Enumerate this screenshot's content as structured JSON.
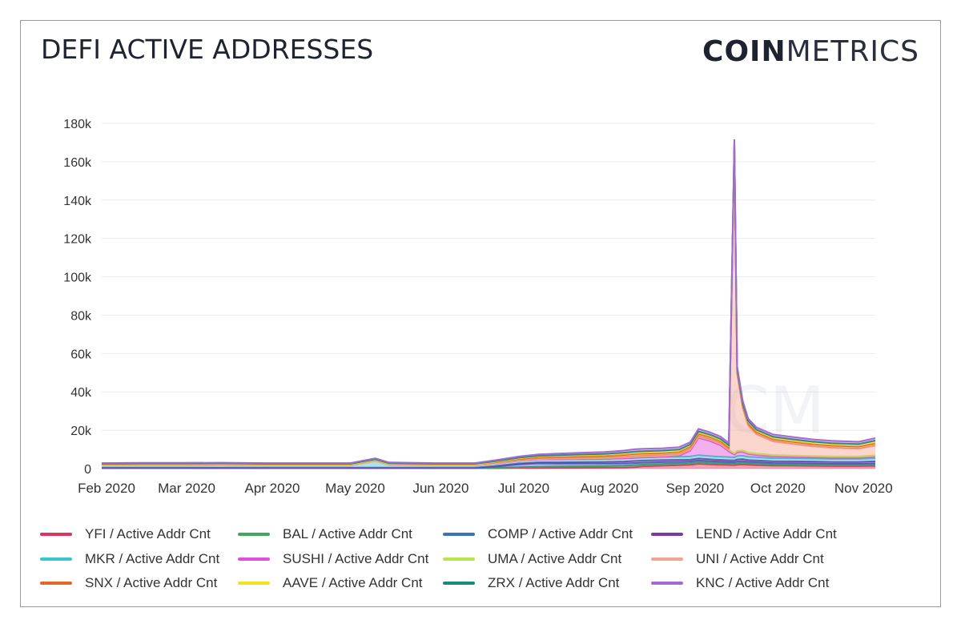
{
  "header": {
    "title": "DEFI ACTIVE ADDRESSES",
    "logo_bold": "COIN",
    "logo_thin": "METRICS"
  },
  "chart_data": {
    "type": "area",
    "stacked": true,
    "title": "DEFI ACTIVE ADDRESSES",
    "xlabel": "",
    "ylabel": "",
    "ylim": [
      0,
      190000
    ],
    "yticks": [
      0,
      20000,
      40000,
      60000,
      80000,
      100000,
      120000,
      140000,
      160000,
      180000
    ],
    "ytick_labels": [
      "0",
      "20k",
      "40k",
      "60k",
      "80k",
      "100k",
      "120k",
      "140k",
      "160k",
      "180k"
    ],
    "xticks": [
      "Feb 2020",
      "Mar 2020",
      "Apr 2020",
      "May 2020",
      "Jun 2020",
      "Jul 2020",
      "Aug 2020",
      "Sep 2020",
      "Oct 2020",
      "Nov 2020"
    ],
    "grid": true,
    "legend_position": "bottom",
    "x": [
      "2020-02-01",
      "2020-02-15",
      "2020-03-01",
      "2020-03-15",
      "2020-04-01",
      "2020-04-15",
      "2020-05-01",
      "2020-05-10",
      "2020-05-15",
      "2020-06-01",
      "2020-06-10",
      "2020-06-15",
      "2020-06-22",
      "2020-07-01",
      "2020-07-08",
      "2020-07-15",
      "2020-07-22",
      "2020-08-01",
      "2020-08-08",
      "2020-08-12",
      "2020-08-15",
      "2020-08-22",
      "2020-08-28",
      "2020-09-01",
      "2020-09-04",
      "2020-09-08",
      "2020-09-12",
      "2020-09-15",
      "2020-09-17",
      "2020-09-18",
      "2020-09-20",
      "2020-09-22",
      "2020-09-25",
      "2020-10-01",
      "2020-10-08",
      "2020-10-15",
      "2020-10-22",
      "2020-11-01",
      "2020-11-07"
    ],
    "series": [
      {
        "name": "YFI / Active Addr Cnt",
        "color": "#e0335a",
        "values": [
          200,
          200,
          200,
          200,
          200,
          200,
          200,
          200,
          200,
          200,
          200,
          200,
          200,
          300,
          300,
          400,
          400,
          500,
          600,
          800,
          1200,
          1500,
          1800,
          2000,
          2500,
          2200,
          2000,
          1900,
          1800,
          2000,
          2200,
          2000,
          1800,
          1600,
          1500,
          1400,
          1300,
          1300,
          1400
        ]
      },
      {
        "name": "BAL / Active Addr Cnt",
        "color": "#3fa85b",
        "values": [
          0,
          0,
          0,
          0,
          0,
          0,
          0,
          0,
          0,
          0,
          0,
          0,
          200,
          400,
          600,
          700,
          800,
          800,
          900,
          1000,
          900,
          900,
          800,
          800,
          900,
          800,
          800,
          700,
          700,
          800,
          800,
          700,
          700,
          600,
          600,
          600,
          500,
          500,
          600
        ]
      },
      {
        "name": "COMP / Active Addr Cnt",
        "color": "#3f6fc1",
        "values": [
          0,
          0,
          0,
          0,
          0,
          0,
          0,
          0,
          0,
          0,
          0,
          0,
          500,
          1500,
          1800,
          1500,
          1400,
          1300,
          1200,
          1100,
          1000,
          1000,
          900,
          900,
          900,
          900,
          800,
          800,
          800,
          900,
          900,
          800,
          800,
          700,
          700,
          700,
          700,
          700,
          700
        ]
      },
      {
        "name": "LEND / Active Addr Cnt",
        "color": "#7b3aa6",
        "values": [
          300,
          300,
          300,
          300,
          300,
          300,
          300,
          300,
          300,
          300,
          300,
          300,
          400,
          500,
          600,
          700,
          800,
          900,
          1000,
          1100,
          1100,
          1100,
          1100,
          1000,
          1000,
          1000,
          1000,
          1000,
          1000,
          1100,
          1100,
          1000,
          1000,
          1000,
          1000,
          1000,
          1000,
          1000,
          1100
        ]
      },
      {
        "name": "MKR / Active Addr Cnt",
        "color": "#39c5cf",
        "values": [
          1200,
          1300,
          1300,
          1400,
          1200,
          1200,
          1200,
          3500,
          1500,
          1200,
          1200,
          1200,
          1300,
          1400,
          1500,
          1500,
          1500,
          1500,
          1600,
          1600,
          1600,
          1600,
          1600,
          1600,
          1700,
          1600,
          1600,
          1600,
          1500,
          1700,
          1700,
          1600,
          1600,
          1500,
          1500,
          1500,
          1500,
          1500,
          1600
        ]
      },
      {
        "name": "SUSHI / Active Addr Cnt",
        "color": "#e44fd9",
        "values": [
          0,
          0,
          0,
          0,
          0,
          0,
          0,
          0,
          0,
          0,
          0,
          0,
          0,
          0,
          0,
          0,
          0,
          0,
          0,
          0,
          0,
          0,
          500,
          3000,
          9000,
          8000,
          6000,
          3000,
          1500,
          2000,
          2000,
          1500,
          1200,
          1000,
          900,
          800,
          700,
          700,
          800
        ]
      },
      {
        "name": "UMA / Active Addr Cnt",
        "color": "#b8e54a",
        "values": [
          0,
          0,
          0,
          0,
          0,
          0,
          0,
          0,
          0,
          0,
          0,
          0,
          100,
          200,
          300,
          400,
          500,
          600,
          700,
          800,
          800,
          800,
          800,
          800,
          800,
          800,
          800,
          700,
          700,
          800,
          800,
          700,
          700,
          700,
          600,
          600,
          600,
          600,
          700
        ]
      },
      {
        "name": "UNI / Active Addr Cnt",
        "color": "#f4a494",
        "values": [
          0,
          0,
          0,
          0,
          0,
          0,
          0,
          0,
          0,
          0,
          0,
          0,
          0,
          0,
          0,
          0,
          0,
          0,
          0,
          0,
          0,
          0,
          0,
          0,
          0,
          0,
          0,
          0,
          160000,
          40000,
          22000,
          14000,
          10000,
          7000,
          6000,
          5000,
          4500,
          4000,
          5000
        ]
      },
      {
        "name": "SNX / Active Addr Cnt",
        "color": "#e0662a",
        "values": [
          500,
          500,
          500,
          500,
          500,
          500,
          500,
          600,
          500,
          500,
          500,
          500,
          600,
          700,
          800,
          900,
          900,
          1000,
          1100,
          1200,
          1200,
          1200,
          1200,
          1200,
          1300,
          1200,
          1200,
          1200,
          1200,
          1300,
          1300,
          1200,
          1200,
          1200,
          1200,
          1200,
          1200,
          1200,
          1300
        ]
      },
      {
        "name": "AAVE / Active Addr Cnt",
        "color": "#f2e21e",
        "values": [
          0,
          0,
          0,
          0,
          0,
          0,
          0,
          0,
          0,
          0,
          0,
          0,
          200,
          400,
          500,
          600,
          700,
          800,
          900,
          1000,
          1000,
          1000,
          1000,
          1000,
          1000,
          1000,
          1000,
          1000,
          1000,
          1100,
          1100,
          1000,
          1000,
          1000,
          1000,
          1000,
          1000,
          1000,
          1100
        ]
      },
      {
        "name": "ZRX / Active Addr Cnt",
        "color": "#188a7a",
        "values": [
          300,
          300,
          300,
          300,
          300,
          300,
          300,
          300,
          300,
          300,
          300,
          300,
          300,
          300,
          300,
          300,
          300,
          300,
          300,
          300,
          300,
          300,
          300,
          300,
          300,
          300,
          300,
          300,
          300,
          300,
          300,
          300,
          300,
          300,
          300,
          300,
          300,
          300,
          300
        ]
      },
      {
        "name": "KNC / Active Addr Cnt",
        "color": "#a46ad0",
        "values": [
          400,
          400,
          400,
          400,
          400,
          400,
          400,
          500,
          400,
          400,
          400,
          400,
          500,
          600,
          700,
          800,
          900,
          1000,
          1100,
          1200,
          1200,
          1200,
          1200,
          1200,
          1300,
          1200,
          1200,
          1200,
          1200,
          1300,
          1300,
          1200,
          1200,
          1200,
          1200,
          1200,
          1200,
          1200,
          1300
        ]
      }
    ]
  }
}
